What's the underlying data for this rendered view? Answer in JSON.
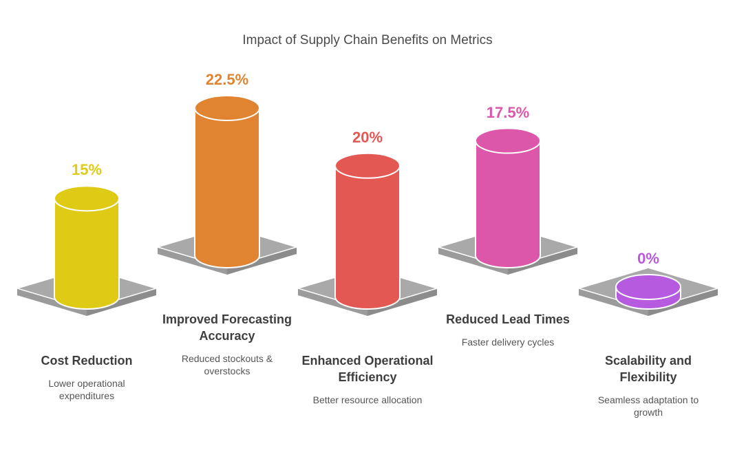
{
  "chart_data": {
    "type": "bar",
    "title": "Impact of Supply Chain Benefits on Metrics",
    "categories": [
      "Cost Reduction",
      "Improved Forecasting Accuracy",
      "Enhanced Operational Efficiency",
      "Reduced Lead Times",
      "Scalability and Flexibility"
    ],
    "descriptions": [
      "Lower operational expenditures",
      "Reduced stockouts & overstocks",
      "Better resource allocation",
      "Faster delivery cycles",
      "Seamless adaptation to growth"
    ],
    "values": [
      15,
      22.5,
      20,
      17.5,
      0
    ],
    "value_labels": [
      "15%",
      "22.5%",
      "20%",
      "17.5%",
      "0%"
    ],
    "colors": [
      "#dfca16",
      "#e08431",
      "#e45853",
      "#dc56a9",
      "#b65be0"
    ],
    "xlabel": "",
    "ylabel": "",
    "ylim": [
      0,
      22.5
    ]
  }
}
